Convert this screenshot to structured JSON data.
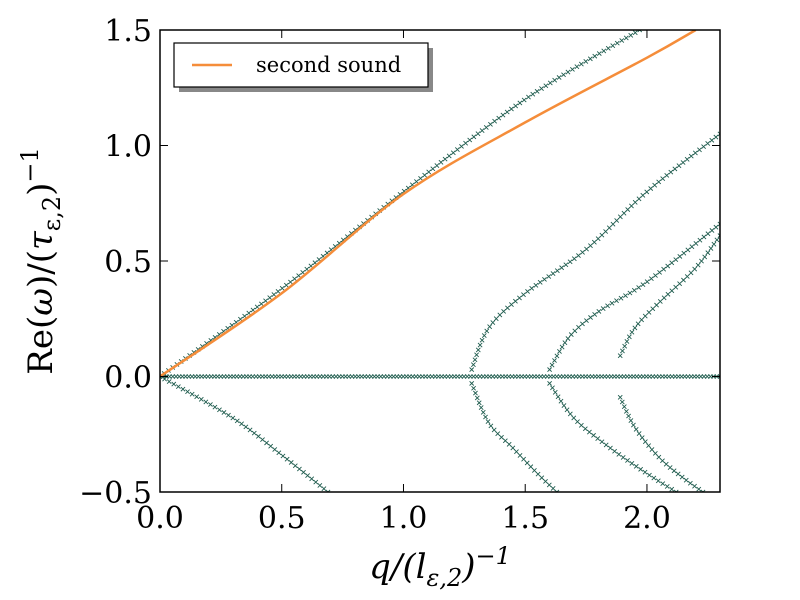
{
  "chart_data": {
    "type": "scatter",
    "xlabel": "q/(lε,2)⁻¹",
    "ylabel": "Re(ω)/(τε,2)⁻¹",
    "xlim": [
      0.0,
      2.3
    ],
    "ylim": [
      -0.5,
      1.5
    ],
    "x_ticks": [
      "0.0",
      "0.5",
      "1.0",
      "1.5",
      "2.0"
    ],
    "y_ticks": [
      "−0.5",
      "0.0",
      "0.5",
      "1.0",
      "1.5"
    ],
    "grid": false,
    "legend_position": "top-left",
    "marker_color": "#1f5c4e",
    "line_color": "#f58d3a",
    "series": [
      {
        "name": "second sound",
        "type": "line",
        "x": [
          0.0,
          0.5,
          1.0,
          1.5,
          2.0,
          2.2
        ],
        "y": [
          0.0,
          0.36,
          0.79,
          1.1,
          1.38,
          1.5
        ]
      },
      {
        "type": "scatter",
        "x": [
          0.0,
          0.5,
          1.0,
          1.5,
          1.97
        ],
        "y": [
          0.0,
          0.38,
          0.8,
          1.2,
          1.5
        ]
      },
      {
        "type": "scatter",
        "x": [
          0.0,
          2.3
        ],
        "y": [
          0.0,
          0.0
        ]
      },
      {
        "type": "scatter",
        "x": [
          0.0,
          0.3,
          0.5,
          0.69
        ],
        "y": [
          0.0,
          -0.18,
          -0.34,
          -0.5
        ]
      },
      {
        "type": "scatter",
        "x": [
          1.28,
          1.35,
          1.5,
          1.75,
          2.0,
          2.3
        ],
        "y": [
          0.03,
          0.21,
          0.36,
          0.55,
          0.8,
          1.05
        ]
      },
      {
        "type": "scatter",
        "x": [
          1.28,
          1.35,
          1.45,
          1.55,
          1.63
        ],
        "y": [
          -0.03,
          -0.2,
          -0.31,
          -0.42,
          -0.5
        ]
      },
      {
        "type": "scatter",
        "x": [
          1.6,
          1.68,
          1.8,
          2.0,
          2.3
        ],
        "y": [
          0.03,
          0.17,
          0.28,
          0.41,
          0.66
        ]
      },
      {
        "type": "scatter",
        "x": [
          1.6,
          1.7,
          1.85,
          2.0,
          2.12
        ],
        "y": [
          -0.03,
          -0.18,
          -0.31,
          -0.42,
          -0.5
        ]
      },
      {
        "type": "scatter",
        "x": [
          1.89,
          1.95,
          2.05,
          2.2,
          2.3
        ],
        "y": [
          0.09,
          0.21,
          0.32,
          0.47,
          0.61
        ]
      },
      {
        "type": "scatter",
        "x": [
          1.89,
          1.95,
          2.05,
          2.15,
          2.23
        ],
        "y": [
          -0.09,
          -0.22,
          -0.35,
          -0.44,
          -0.5
        ]
      }
    ]
  }
}
